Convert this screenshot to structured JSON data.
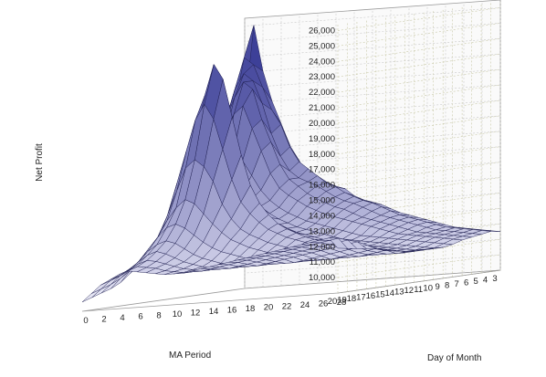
{
  "chart_data": {
    "type": "surface3d",
    "title": "",
    "zlabel": "Net Profit",
    "xlabel": "MA Period",
    "ylabel": "Day of Month",
    "z_ticks": [
      "10,000",
      "11,000",
      "12,000",
      "13,000",
      "14,000",
      "15,000",
      "16,000",
      "17,000",
      "18,000",
      "19,000",
      "20,000",
      "21,000",
      "22,000",
      "23,000",
      "24,000",
      "25,000",
      "26,000"
    ],
    "x_ticks": [
      "3",
      "4",
      "5",
      "6",
      "7",
      "8",
      "9",
      "10",
      "11",
      "12",
      "13",
      "14",
      "15",
      "16",
      "17",
      "18",
      "19",
      "20"
    ],
    "y_ticks": [
      "0",
      "2",
      "4",
      "6",
      "8",
      "10",
      "12",
      "14",
      "16",
      "18",
      "20",
      "22",
      "24",
      "26",
      "28"
    ],
    "zlim": [
      9000,
      26500
    ],
    "x_range": [
      3,
      20
    ],
    "y_range": [
      0,
      28
    ],
    "grid": true,
    "colors": {
      "back_wall_left": "#ffffd8",
      "back_wall_right": "#fafafa",
      "floor": "#ffffff",
      "surface_high": "#2a2d8e",
      "surface_low": "#e6e6f4"
    },
    "surface_z_by_ma_period": [
      [
        20500,
        26000,
        23000,
        21000,
        19500,
        18000,
        17000,
        16000,
        15800,
        15500,
        15200,
        15000,
        14500,
        14200,
        14000,
        13800,
        13500,
        13200,
        13000,
        12800,
        12600,
        12400,
        12200,
        12000,
        11900,
        11800,
        11700,
        11600,
        11500
      ],
      [
        21000,
        24000,
        23500,
        22000,
        20500,
        19500,
        18000,
        17000,
        16500,
        16000,
        15500,
        15200,
        14800,
        14500,
        14200,
        14000,
        13700,
        13400,
        13100,
        12900,
        12700,
        12500,
        12300,
        12100,
        12000,
        11900,
        11800,
        11700,
        11600
      ],
      [
        20000,
        22000,
        23000,
        22500,
        21000,
        19000,
        17500,
        16500,
        16000,
        15700,
        15400,
        15000,
        14600,
        14300,
        14100,
        13800,
        13500,
        13200,
        13000,
        12800,
        12600,
        12400,
        12200,
        12000,
        11900,
        11800,
        11700,
        11600,
        11500
      ],
      [
        18000,
        20000,
        21500,
        22500,
        22000,
        20000,
        18500,
        17000,
        16000,
        15500,
        15000,
        14600,
        14300,
        14000,
        13800,
        13500,
        13200,
        13000,
        12800,
        12600,
        12400,
        12200,
        12000,
        11900,
        11800,
        11700,
        11600,
        11500,
        11400
      ],
      [
        16000,
        17500,
        19000,
        20500,
        21000,
        19500,
        18000,
        16500,
        15500,
        15000,
        14600,
        14200,
        13900,
        13600,
        13400,
        13200,
        13000,
        12800,
        12600,
        12400,
        12200,
        12000,
        11900,
        11800,
        11700,
        11600,
        11500,
        11400,
        11300
      ],
      [
        14500,
        15500,
        16500,
        17500,
        18000,
        17500,
        16500,
        15500,
        14800,
        14300,
        13900,
        13600,
        13300,
        13100,
        12900,
        12700,
        12500,
        12300,
        12100,
        12000,
        11900,
        11800,
        11700,
        11600,
        11500,
        11400,
        11300,
        11200,
        11100
      ],
      [
        13500,
        14500,
        15500,
        16000,
        16500,
        16000,
        15500,
        15000,
        14500,
        14000,
        13600,
        13300,
        13000,
        12800,
        12600,
        12400,
        12200,
        12000,
        11900,
        11800,
        11700,
        11600,
        11500,
        11400,
        11300,
        11200,
        11100,
        11000,
        11000
      ],
      [
        13000,
        14000,
        15000,
        16500,
        18000,
        19000,
        18500,
        17000,
        15500,
        14500,
        13800,
        13300,
        13000,
        12700,
        12500,
        12300,
        12100,
        11900,
        11800,
        11700,
        11600,
        11500,
        11400,
        11300,
        11200,
        11100,
        11000,
        11000,
        11000
      ],
      [
        13500,
        15000,
        17000,
        19500,
        22000,
        24000,
        23000,
        20500,
        18000,
        16000,
        14800,
        14000,
        13400,
        13000,
        12700,
        12400,
        12200,
        12000,
        11800,
        11700,
        11600,
        11500,
        11400,
        11300,
        11200,
        11100,
        11000,
        11000,
        11000
      ],
      [
        13000,
        14500,
        16500,
        18500,
        20500,
        21500,
        20500,
        18500,
        16500,
        15000,
        14200,
        13600,
        13100,
        12800,
        12500,
        12300,
        12100,
        11900,
        11700,
        11600,
        11500,
        11400,
        11300,
        11200,
        11100,
        11000,
        11000,
        11000,
        11000
      ],
      [
        12000,
        13000,
        14500,
        16000,
        17500,
        18000,
        17500,
        16500,
        15000,
        14000,
        13300,
        12900,
        12600,
        12300,
        12100,
        11900,
        11700,
        11600,
        11500,
        11400,
        11300,
        11200,
        11100,
        11000,
        11000,
        11000,
        11000,
        11000,
        11000
      ],
      [
        11500,
        12300,
        13200,
        14200,
        15000,
        15500,
        15200,
        14500,
        13800,
        13200,
        12700,
        12400,
        12100,
        11900,
        11700,
        11500,
        11400,
        11300,
        11200,
        11100,
        11000,
        11000,
        11000,
        11000,
        11000,
        11100,
        11200,
        11300,
        11200
      ],
      [
        11000,
        11700,
        12500,
        13200,
        13800,
        14000,
        13700,
        13200,
        12700,
        12300,
        12000,
        11800,
        11600,
        11400,
        11300,
        11200,
        11100,
        11000,
        11000,
        11000,
        11000,
        11000,
        11000,
        11100,
        11200,
        11300,
        11400,
        11500,
        11300
      ],
      [
        10500,
        11200,
        11800,
        12400,
        12800,
        13000,
        12800,
        12400,
        12000,
        11700,
        11500,
        11300,
        11200,
        11100,
        11000,
        11000,
        11000,
        11000,
        11000,
        11000,
        11100,
        11200,
        11300,
        11400,
        11500,
        11600,
        11700,
        11800,
        11500
      ],
      [
        10200,
        10800,
        11300,
        11800,
        12200,
        12400,
        12200,
        11900,
        11600,
        11400,
        11200,
        11100,
        11000,
        11000,
        11000,
        11000,
        11000,
        11100,
        11200,
        11300,
        11400,
        11500,
        11600,
        11700,
        11800,
        11900,
        12000,
        12100,
        11600
      ],
      [
        10000,
        10500,
        11000,
        11400,
        11700,
        11900,
        11800,
        11600,
        11400,
        11200,
        11100,
        11000,
        11000,
        11000,
        11000,
        11100,
        11200,
        11300,
        11400,
        11500,
        11600,
        11700,
        11800,
        11900,
        12000,
        12100,
        12200,
        12300,
        11700
      ],
      [
        9800,
        10300,
        10800,
        11100,
        11400,
        11600,
        11500,
        11400,
        11200,
        11100,
        11000,
        11000,
        11000,
        11100,
        11200,
        11300,
        11400,
        11500,
        11600,
        11700,
        11800,
        11900,
        12000,
        12100,
        12200,
        12300,
        12400,
        12500,
        11800
      ],
      [
        9600,
        10100,
        10600,
        10900,
        11200,
        11400,
        11300,
        11200,
        11100,
        11000,
        11000,
        11000,
        11100,
        11200,
        11300,
        11400,
        11500,
        11600,
        11700,
        11800,
        11900,
        12000,
        12100,
        12200,
        12300,
        12400,
        12500,
        12600,
        11900
      ]
    ]
  }
}
